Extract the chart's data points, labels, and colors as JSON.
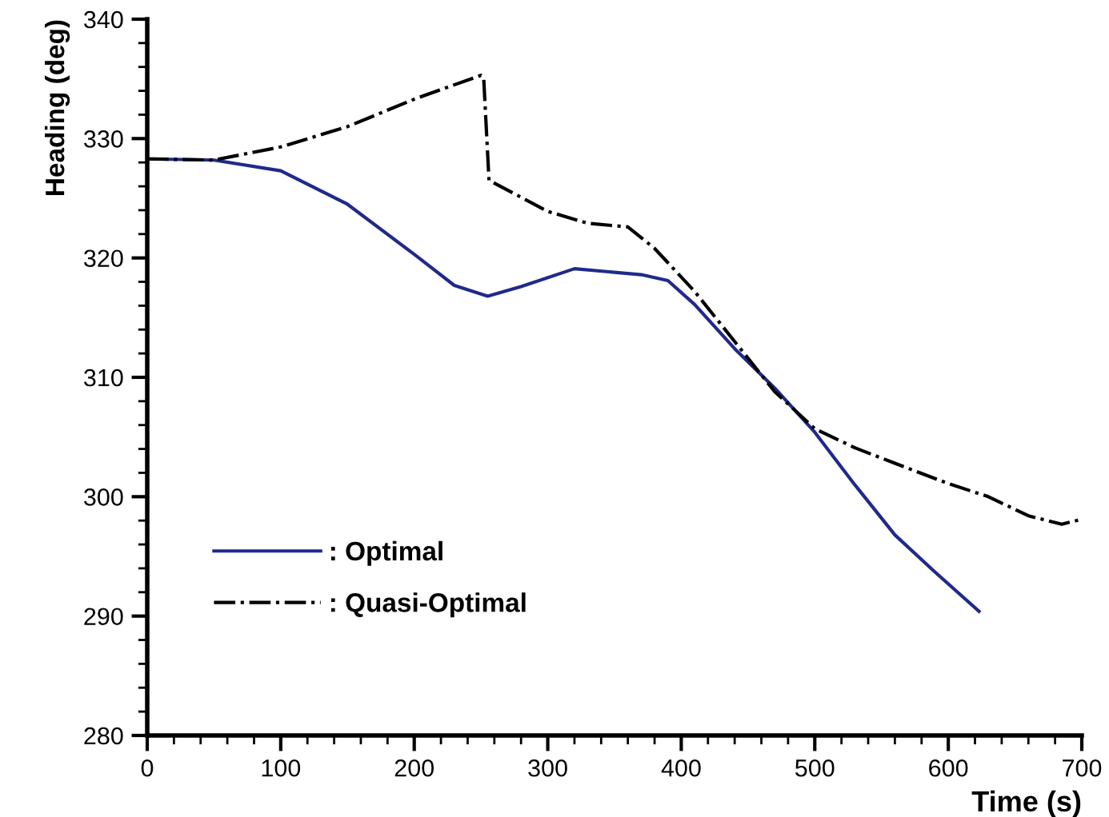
{
  "chart_data": {
    "type": "line",
    "xlabel": "Time (s)",
    "ylabel": "Heading (deg)",
    "xlim": [
      0,
      700
    ],
    "xticks": [
      0,
      100,
      200,
      300,
      400,
      500,
      600,
      700
    ],
    "ylim": [
      280,
      340
    ],
    "yticks": [
      280,
      290,
      300,
      310,
      320,
      330,
      340
    ],
    "grid": false,
    "legend": "bottom left",
    "marker": "none",
    "series": [
      {
        "name": ": Optimal",
        "color": "#1f2a8a",
        "line_style": "solid",
        "x": [
          0,
          50,
          100,
          150,
          200,
          230,
          255,
          280,
          320,
          370,
          390,
          410,
          440,
          470,
          500,
          530,
          560,
          590,
          623
        ],
        "values": [
          328.3,
          328.2,
          327.3,
          324.5,
          320.3,
          317.7,
          316.8,
          317.6,
          319.1,
          318.6,
          318.1,
          316.1,
          312.4,
          309.1,
          305.4,
          301.0,
          296.8,
          293.7,
          290.4
        ]
      },
      {
        "name": ": Quasi-Optimal",
        "color": "#000000",
        "line_style": "dashdot",
        "x": [
          0,
          50,
          100,
          150,
          200,
          250,
          252,
          256,
          300,
          330,
          360,
          380,
          410,
          440,
          470,
          500,
          530,
          560,
          600,
          630,
          660,
          685,
          700
        ],
        "values": [
          328.3,
          328.2,
          329.3,
          331.0,
          333.3,
          335.3,
          335.1,
          326.5,
          323.9,
          322.9,
          322.6,
          320.8,
          317.2,
          313.0,
          308.8,
          305.7,
          304.1,
          302.8,
          301.1,
          300.0,
          298.4,
          297.7,
          298.1
        ]
      }
    ]
  }
}
